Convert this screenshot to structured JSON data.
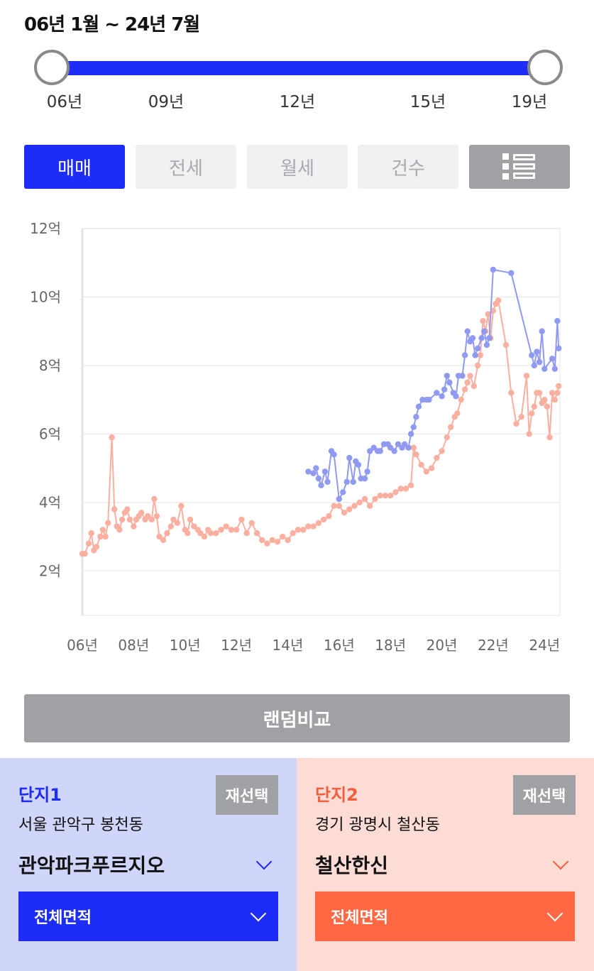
{
  "range_title": "06년 1월 ~ 24년 7월",
  "slider": {
    "start_fraction": 0.0,
    "end_fraction": 1.0,
    "ticks": [
      "06년",
      "09년",
      "12년",
      "15년",
      "19년"
    ]
  },
  "tabs": {
    "items": [
      "매매",
      "전세",
      "월세",
      "건수"
    ],
    "active": "매매",
    "list_icon": "list-view-icon"
  },
  "colors": {
    "accent_blue": "#1e2df5",
    "accent_orange": "#ff6842",
    "series1_line": "#8f9af0",
    "series2_line": "#f9b0a0",
    "button_gray": "#a0a1a5"
  },
  "chart_data": {
    "type": "line",
    "xlabel": "",
    "ylabel": "",
    "x_tick_labels": [
      "06년",
      "08년",
      "10년",
      "12년",
      "14년",
      "16년",
      "18년",
      "20년",
      "22년",
      "24년"
    ],
    "x_ticks": [
      2006,
      2008,
      2010,
      2012,
      2014,
      2016,
      2018,
      2020,
      2022,
      2024
    ],
    "xlim": [
      2006,
      2024.6
    ],
    "y_tick_labels": [
      "2억",
      "4억",
      "6억",
      "8억",
      "10억",
      "12억"
    ],
    "y_ticks": [
      2,
      4,
      6,
      8,
      10,
      12
    ],
    "ylim": [
      0.7,
      12
    ],
    "grid": true,
    "series": [
      {
        "color": "#8f9af0",
        "x": [
          2014.8,
          2015.0,
          2015.1,
          2015.2,
          2015.3,
          2015.45,
          2015.55,
          2015.7,
          2015.8,
          2016.0,
          2016.15,
          2016.3,
          2016.4,
          2016.55,
          2016.65,
          2016.75,
          2016.85,
          2017.0,
          2017.1,
          2017.2,
          2017.35,
          2017.5,
          2017.6,
          2017.75,
          2017.9,
          2018.0,
          2018.15,
          2018.3,
          2018.45,
          2018.55,
          2018.7,
          2018.8,
          2018.9,
          2019.0,
          2019.1,
          2019.25,
          2019.4,
          2019.5,
          2019.8,
          2020.0,
          2020.1,
          2020.2,
          2020.3,
          2020.45,
          2020.55,
          2020.65,
          2020.8,
          2020.9,
          2021.0,
          2021.1,
          2021.2,
          2021.3,
          2021.4,
          2021.55,
          2021.65,
          2021.75,
          2021.85,
          2022.0,
          2022.7,
          2023.5,
          2023.6,
          2023.7,
          2023.8,
          2023.9,
          2024.0,
          2024.3,
          2024.4,
          2024.5,
          2024.55
        ],
        "values": [
          4.9,
          4.85,
          5.0,
          4.7,
          4.5,
          4.9,
          4.6,
          5.5,
          5.4,
          4.1,
          4.3,
          4.6,
          5.3,
          4.6,
          5.2,
          5.1,
          4.7,
          4.7,
          4.9,
          5.5,
          5.6,
          5.5,
          5.5,
          5.7,
          5.7,
          5.6,
          5.5,
          5.7,
          5.6,
          5.7,
          5.6,
          6.0,
          6.2,
          6.5,
          6.8,
          7.0,
          7.0,
          7.0,
          7.2,
          7.1,
          7.3,
          7.7,
          7.5,
          7.2,
          7.1,
          7.7,
          7.7,
          8.3,
          9.0,
          8.7,
          8.8,
          8.3,
          8.5,
          8.8,
          9.0,
          8.6,
          8.8,
          10.8,
          10.7,
          8.3,
          8.0,
          8.4,
          8.1,
          9.0,
          7.9,
          8.2,
          7.9,
          9.3,
          8.5
        ]
      },
      {
        "color": "#f9b0a0",
        "x": [
          2006.0,
          2006.1,
          2006.25,
          2006.35,
          2006.45,
          2006.55,
          2006.7,
          2006.8,
          2006.9,
          2007.0,
          2007.15,
          2007.25,
          2007.35,
          2007.45,
          2007.55,
          2007.65,
          2007.75,
          2007.85,
          2008.0,
          2008.1,
          2008.2,
          2008.3,
          2008.45,
          2008.55,
          2008.7,
          2008.8,
          2008.9,
          2009.0,
          2009.15,
          2009.3,
          2009.45,
          2009.55,
          2009.7,
          2009.85,
          2010.0,
          2010.1,
          2010.2,
          2010.35,
          2010.5,
          2010.6,
          2010.75,
          2010.9,
          2011.0,
          2011.2,
          2011.4,
          2011.6,
          2011.8,
          2012.0,
          2012.2,
          2012.4,
          2012.6,
          2012.8,
          2013.0,
          2013.2,
          2013.4,
          2013.6,
          2013.8,
          2014.0,
          2014.2,
          2014.4,
          2014.6,
          2014.8,
          2015.0,
          2015.2,
          2015.4,
          2015.6,
          2015.8,
          2016.0,
          2016.2,
          2016.4,
          2016.6,
          2016.8,
          2017.0,
          2017.2,
          2017.4,
          2017.6,
          2017.8,
          2018.0,
          2018.2,
          2018.4,
          2018.6,
          2018.8,
          2018.9,
          2019.0,
          2019.2,
          2019.4,
          2019.6,
          2019.8,
          2020.0,
          2020.2,
          2020.35,
          2020.5,
          2020.6,
          2020.75,
          2020.9,
          2021.0,
          2021.1,
          2021.25,
          2021.4,
          2021.5,
          2021.6,
          2021.7,
          2021.8,
          2021.9,
          2022.0,
          2022.1,
          2022.2,
          2022.5,
          2022.7,
          2022.9,
          2023.1,
          2023.3,
          2023.4,
          2023.5,
          2023.6,
          2023.7,
          2023.8,
          2023.9,
          2024.0,
          2024.1,
          2024.2,
          2024.3,
          2024.4,
          2024.5,
          2024.55
        ],
        "values": [
          2.5,
          2.5,
          2.8,
          3.1,
          2.6,
          2.7,
          3.0,
          3.2,
          3.0,
          3.4,
          5.9,
          3.8,
          3.3,
          3.2,
          3.5,
          3.7,
          3.8,
          3.5,
          3.3,
          3.5,
          3.6,
          3.7,
          3.5,
          3.6,
          3.5,
          4.1,
          3.6,
          3.0,
          2.9,
          3.1,
          3.3,
          3.5,
          3.4,
          3.9,
          3.2,
          3.1,
          3.5,
          3.3,
          3.2,
          3.1,
          3.0,
          3.2,
          3.1,
          3.1,
          3.2,
          3.3,
          3.2,
          3.2,
          3.5,
          3.1,
          3.4,
          3.1,
          2.9,
          2.8,
          2.9,
          2.85,
          3.0,
          2.9,
          3.1,
          3.2,
          3.2,
          3.3,
          3.3,
          3.4,
          3.5,
          3.6,
          3.9,
          3.9,
          3.7,
          3.8,
          3.9,
          4.0,
          4.1,
          3.9,
          4.1,
          4.2,
          4.2,
          4.2,
          4.3,
          4.4,
          4.4,
          4.5,
          5.6,
          5.4,
          5.1,
          4.9,
          5.0,
          5.3,
          5.5,
          5.9,
          6.2,
          6.5,
          6.6,
          7.0,
          7.3,
          7.5,
          7.7,
          7.4,
          8.0,
          8.3,
          9.3,
          9.0,
          9.5,
          8.8,
          9.6,
          9.8,
          9.9,
          8.6,
          7.2,
          6.3,
          6.5,
          7.7,
          6.0,
          6.6,
          6.8,
          7.2,
          7.2,
          6.9,
          7.0,
          6.8,
          5.9,
          7.2,
          7.0,
          7.2,
          7.4
        ]
      }
    ]
  },
  "random_compare_label": "랜덤비교",
  "complexes": [
    {
      "title": "단지1",
      "reselect_label": "재선택",
      "location": "서울 관악구 봉천동",
      "name": "관악파크푸르지오",
      "area_label": "전체면적"
    },
    {
      "title": "단지2",
      "reselect_label": "재선택",
      "location": "경기 광명시 철산동",
      "name": "철산한신",
      "area_label": "전체면적"
    }
  ]
}
